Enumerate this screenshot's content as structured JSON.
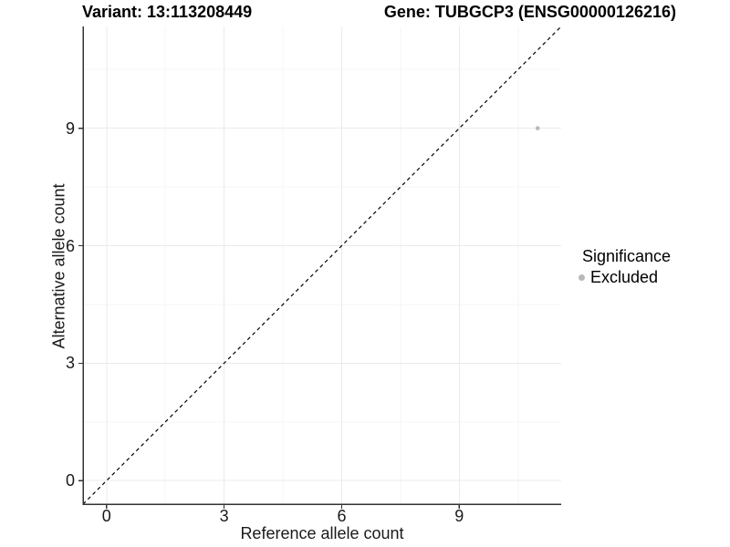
{
  "header": {
    "title_left": "Variant: 13:113208449",
    "title_right": "Gene: TUBGCP3 (ENSG00000126216)"
  },
  "chart_data": {
    "type": "scatter",
    "xlabel": "Reference allele count",
    "ylabel": "Alternative allele count",
    "x_ticks": [
      "0",
      "3",
      "6",
      "9"
    ],
    "y_ticks": [
      "0",
      "3",
      "6",
      "9"
    ],
    "x_tick_values": [
      0,
      3,
      6,
      9
    ],
    "y_tick_values": [
      0,
      3,
      6,
      9
    ],
    "x_minor": [
      1.5,
      4.5,
      7.5,
      10.5
    ],
    "y_minor": [
      1.5,
      4.5,
      7.5,
      10.5
    ],
    "xlim": [
      -0.6,
      11.6
    ],
    "ylim": [
      -0.6,
      11.6
    ],
    "grid": "major+minor",
    "legend_position": "right",
    "reference_line": {
      "style": "dashed",
      "equation": "y = x"
    },
    "series": [
      {
        "name": "Excluded",
        "color": "#b9b9b9",
        "point_radius": 2.3,
        "points": [
          {
            "x": 11,
            "y": 9
          }
        ]
      }
    ],
    "legend": {
      "title": "Significance",
      "entries": [
        {
          "label": "Excluded",
          "color": "#b9b9b9"
        }
      ]
    },
    "colors": {
      "major_grid": "#ebebeb",
      "minor_grid": "#f5f5f5",
      "axis_line": "#333333",
      "reference_line": "#000000",
      "background": "#ffffff"
    }
  }
}
